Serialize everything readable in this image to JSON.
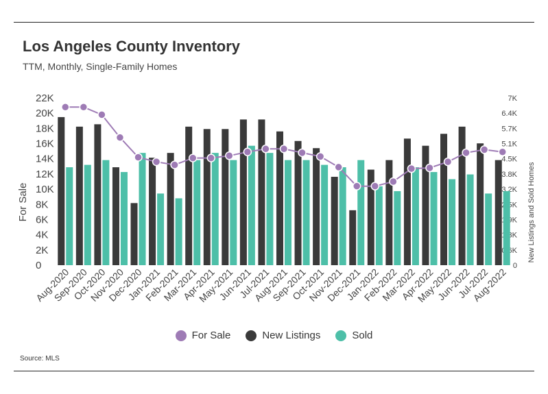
{
  "header": {
    "title": "Los Angeles County Inventory",
    "subtitle": "TTM, Monthly, Single-Family Homes"
  },
  "footer": {
    "source": "Source:  MLS"
  },
  "colors": {
    "for_sale": "#9e7bb5",
    "new_listings": "#3a3a3a",
    "sold": "#4dbfa8"
  },
  "chart_data": {
    "type": "bar",
    "title": "Los Angeles County Inventory",
    "subtitle": "TTM, Monthly, Single-Family Homes",
    "categories": [
      "Aug-2020",
      "Sep-2020",
      "Oct-2020",
      "Nov-2020",
      "Dec-2020",
      "Jan-2021",
      "Feb-2021",
      "Mar-2021",
      "Apr-2021",
      "May-2021",
      "Jun-2021",
      "Jul-2021",
      "Aug-2021",
      "Sep-2021",
      "Oct-2021",
      "Nov-2021",
      "Dec-2021",
      "Jan-2022",
      "Feb-2022",
      "Mar-2022",
      "Apr-2022",
      "May-2022",
      "Jun-2022",
      "Jul-2022",
      "Aug-2022"
    ],
    "y_left": {
      "label": "For Sale",
      "ylim": [
        0,
        22000
      ],
      "ticks": [
        "0",
        "2K",
        "4K",
        "6K",
        "8K",
        "10K",
        "12K",
        "14K",
        "16K",
        "18K",
        "20K",
        "22K"
      ]
    },
    "y_right": {
      "label": "New Listings and Sold Homes",
      "ylim": [
        0,
        7000
      ],
      "ticks": [
        "0",
        "0.6K",
        "1.3K",
        "1.9K",
        "2.5K",
        "3.2K",
        "3.8K",
        "4.5K",
        "5.1K",
        "5.7K",
        "6.4K",
        "7K"
      ]
    },
    "series": [
      {
        "name": "For Sale",
        "type": "line",
        "axis": "left",
        "values": [
          20800,
          20800,
          19800,
          16800,
          14200,
          13600,
          13200,
          14100,
          14100,
          14400,
          14900,
          15300,
          15300,
          14800,
          14300,
          12900,
          10400,
          10400,
          11000,
          12700,
          12800,
          13600,
          14800,
          15200,
          14900
        ]
      },
      {
        "name": "New Listings",
        "type": "bar",
        "axis": "right",
        "values": [
          6200,
          5800,
          5900,
          4100,
          2600,
          4500,
          4700,
          5800,
          5700,
          5700,
          6100,
          6100,
          5600,
          5200,
          4900,
          3700,
          2300,
          4000,
          4400,
          5300,
          5000,
          5500,
          5800,
          5100,
          4400
        ]
      },
      {
        "name": "Sold",
        "type": "bar",
        "axis": "right",
        "values": [
          4100,
          4200,
          4400,
          3900,
          4700,
          3000,
          2800,
          4400,
          4700,
          4400,
          5000,
          4700,
          4400,
          4400,
          4200,
          4100,
          4400,
          3300,
          3100,
          4100,
          3900,
          3600,
          3800,
          3000,
          3100
        ]
      }
    ],
    "legend": {
      "position": "bottom",
      "entries": [
        "For Sale",
        "New Listings",
        "Sold"
      ]
    }
  }
}
